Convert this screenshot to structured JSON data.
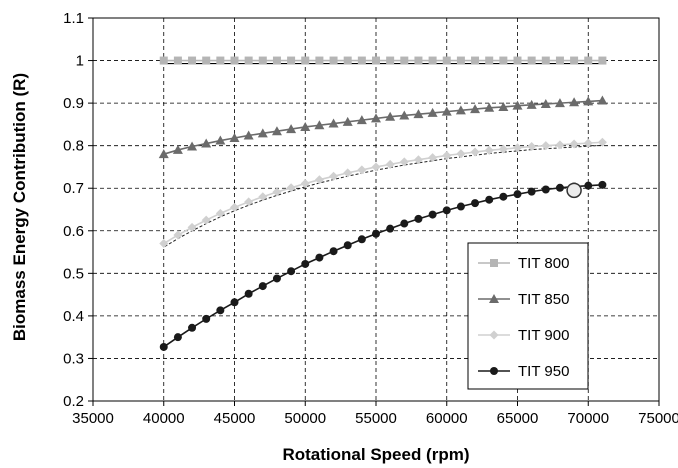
{
  "chart_data": {
    "type": "line",
    "title": "",
    "xlabel": "Rotational Speed (rpm)",
    "ylabel": "Biomass Energy Contribution (R)",
    "xlim": [
      35000,
      75000
    ],
    "ylim": [
      0.2,
      1.1
    ],
    "xticks": [
      "35000",
      "40000",
      "45000",
      "50000",
      "55000",
      "60000",
      "65000",
      "70000",
      "75000"
    ],
    "yticks": [
      "0.2",
      "0.3",
      "0.4",
      "0.5",
      "0.6",
      "0.7",
      "0.8",
      "0.9",
      "1",
      "1.1"
    ],
    "grid": "dashed",
    "legend_position": "bottom-right",
    "x": [
      40000,
      41000,
      42000,
      43000,
      44000,
      45000,
      46000,
      47000,
      48000,
      49000,
      50000,
      51000,
      52000,
      53000,
      54000,
      55000,
      56000,
      57000,
      58000,
      59000,
      60000,
      61000,
      62000,
      63000,
      64000,
      65000,
      66000,
      67000,
      68000,
      69000,
      70000,
      71000
    ],
    "series": [
      {
        "name": "TIT 800",
        "color": "#b5b5b5",
        "marker": "square",
        "values": [
          1,
          1,
          1,
          1,
          1,
          1,
          1,
          1,
          1,
          1,
          1,
          1,
          1,
          1,
          1,
          1,
          1,
          1,
          1,
          1,
          1,
          1,
          1,
          1,
          1,
          1,
          1,
          1,
          1,
          1,
          1,
          1
        ]
      },
      {
        "name": "TIT 850",
        "color": "#6b6b6b",
        "marker": "triangle",
        "values": [
          0.78,
          0.79,
          0.798,
          0.805,
          0.812,
          0.818,
          0.824,
          0.829,
          0.834,
          0.839,
          0.844,
          0.848,
          0.852,
          0.856,
          0.86,
          0.864,
          0.868,
          0.871,
          0.874,
          0.877,
          0.88,
          0.883,
          0.886,
          0.889,
          0.891,
          0.894,
          0.896,
          0.898,
          0.9,
          0.902,
          0.904,
          0.906
        ]
      },
      {
        "name": "TIT 900",
        "color": "#d0d0d0",
        "marker": "diamond",
        "values": [
          0.57,
          0.59,
          0.608,
          0.625,
          0.641,
          0.655,
          0.668,
          0.68,
          0.691,
          0.701,
          0.711,
          0.72,
          0.728,
          0.736,
          0.743,
          0.75,
          0.756,
          0.762,
          0.767,
          0.772,
          0.777,
          0.781,
          0.785,
          0.789,
          0.792,
          0.795,
          0.798,
          0.8,
          0.802,
          0.804,
          0.806,
          0.808
        ]
      },
      {
        "name": "TIT 950",
        "color": "#1a1a1a",
        "marker": "circle",
        "values": [
          0.327,
          0.35,
          0.372,
          0.393,
          0.413,
          0.432,
          0.452,
          0.47,
          0.488,
          0.505,
          0.522,
          0.537,
          0.552,
          0.566,
          0.58,
          0.593,
          0.605,
          0.617,
          0.628,
          0.638,
          0.648,
          0.657,
          0.665,
          0.673,
          0.68,
          0.686,
          0.692,
          0.697,
          0.701,
          0.704,
          0.706,
          0.708
        ]
      }
    ],
    "highlight_point": {
      "x": 69000,
      "y": 0.695
    }
  }
}
